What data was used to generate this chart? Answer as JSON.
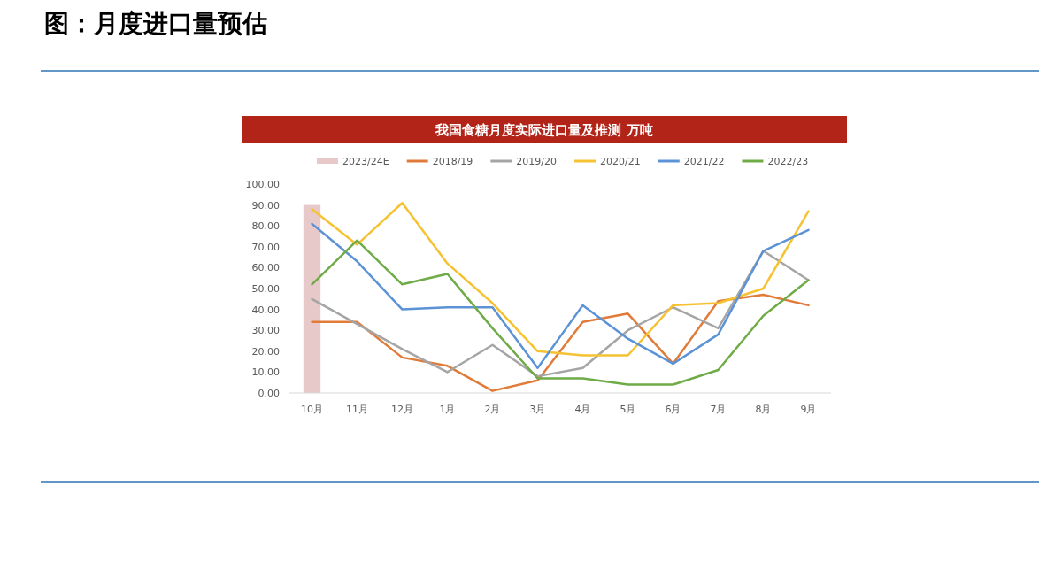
{
  "chart_data": {
    "type": "line",
    "title": "图：月度进口量预估",
    "subtitle": "我国食糖月度实际进口量及推测 万吨",
    "categories": [
      "10月",
      "11月",
      "12月",
      "1月",
      "2月",
      "3月",
      "4月",
      "5月",
      "6月",
      "7月",
      "8月",
      "9月"
    ],
    "series": [
      {
        "name": "2023/24E",
        "type": "bar",
        "color": "#e8c9c9",
        "values": [
          90,
          null,
          null,
          null,
          null,
          null,
          null,
          null,
          null,
          null,
          null,
          null
        ]
      },
      {
        "name": "2018/19",
        "color": "#e07b39",
        "values": [
          34,
          34,
          17,
          13,
          1,
          6,
          34,
          38,
          14,
          44,
          47,
          42
        ]
      },
      {
        "name": "2019/20",
        "color": "#a5a5a5",
        "values": [
          45,
          33,
          21,
          10,
          23,
          8,
          12,
          30,
          41,
          31,
          68,
          54
        ]
      },
      {
        "name": "2020/21",
        "color": "#f6c232",
        "values": [
          88,
          71,
          91,
          62,
          43,
          20,
          18,
          18,
          42,
          43,
          50,
          87
        ]
      },
      {
        "name": "2021/22",
        "color": "#5b93d6",
        "values": [
          81,
          63,
          40,
          41,
          41,
          12,
          42,
          26,
          14,
          28,
          68,
          78
        ]
      },
      {
        "name": "2022/23",
        "color": "#6fab46",
        "values": [
          52,
          73,
          52,
          57,
          31,
          7,
          7,
          4,
          4,
          11,
          37,
          54
        ]
      }
    ],
    "ylim": [
      0,
      100
    ],
    "yticks": [
      {
        "value": 0,
        "label": "0.00"
      },
      {
        "value": 10,
        "label": "10.00"
      },
      {
        "value": 20,
        "label": "20.00"
      },
      {
        "value": 30,
        "label": "30.00"
      },
      {
        "value": 40,
        "label": "40.00"
      },
      {
        "value": 50,
        "label": "50.00"
      },
      {
        "value": 60,
        "label": "60.00"
      },
      {
        "value": 70,
        "label": "70.00"
      },
      {
        "value": 80,
        "label": "80.00"
      },
      {
        "value": 90,
        "label": "90.00"
      },
      {
        "value": 100,
        "label": "100.00"
      }
    ],
    "grid": false,
    "legend": "top",
    "marker": "none",
    "line_style": "solid"
  }
}
